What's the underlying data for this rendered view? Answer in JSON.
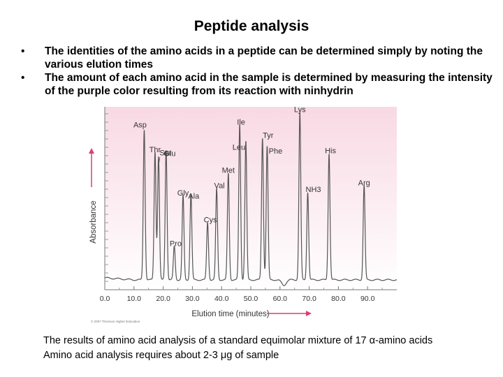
{
  "slide": {
    "title": "Peptide analysis",
    "bullets": [
      "The identities of the amino acids in a peptide can be determined simply by noting the various elution times",
      "The amount of each amino acid in the sample is determined by measuring the intensity of the purple color resulting from its reaction with ninhydrin"
    ],
    "captions": [
      "The results of amino acid analysis of a standard equimolar mixture of 17 α-amino acids",
      "Amino acid analysis requires about 2-3 μg of sample"
    ]
  },
  "chart_data": {
    "type": "line",
    "title": "",
    "xlabel": "Elution time (minutes)",
    "ylabel": "Absorbance",
    "xlim": [
      0,
      100
    ],
    "ylim": [
      0,
      100
    ],
    "x_ticks": [
      "0.0",
      "10.0",
      "20.0",
      "30.0",
      "40.0",
      "50.0",
      "60.0",
      "70.0",
      "80.0",
      "90.0"
    ],
    "copyright": "© 2007 Thomson Higher Education",
    "background_color": "#f8d9e4",
    "line_color": "#555555",
    "arrow_color": "#d9406f",
    "peaks": [
      {
        "name": "Asp",
        "x": 13.5,
        "y": 89
      },
      {
        "name": "Thr",
        "x": 17.2,
        "y": 76
      },
      {
        "name": "Ser",
        "x": 18.4,
        "y": 73
      },
      {
        "name": "Glu",
        "x": 21.0,
        "y": 77
      },
      {
        "name": "Pro",
        "x": 23.8,
        "y": 20
      },
      {
        "name": "Gly",
        "x": 26.8,
        "y": 50
      },
      {
        "name": "Ala",
        "x": 29.5,
        "y": 51
      },
      {
        "name": "Cys",
        "x": 35.2,
        "y": 34
      },
      {
        "name": "Val",
        "x": 38.3,
        "y": 54
      },
      {
        "name": "Met",
        "x": 42.3,
        "y": 63
      },
      {
        "name": "Ile",
        "x": 46.2,
        "y": 92
      },
      {
        "name": "Leu",
        "x": 48.3,
        "y": 82
      },
      {
        "name": "Tyr",
        "x": 54.0,
        "y": 84
      },
      {
        "name": "Phe",
        "x": 55.6,
        "y": 79
      },
      {
        "name": "Lys",
        "x": 66.8,
        "y": 99
      },
      {
        "name": "NH3",
        "x": 69.5,
        "y": 52
      },
      {
        "name": "His",
        "x": 76.8,
        "y": 75
      },
      {
        "name": "Arg",
        "x": 88.8,
        "y": 56
      }
    ]
  }
}
